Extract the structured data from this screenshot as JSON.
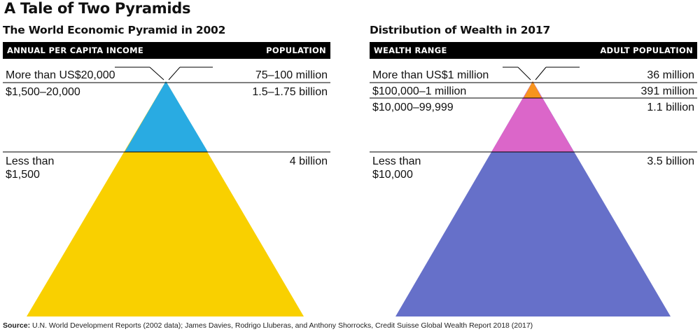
{
  "title": "A Tale of Two Pyramids",
  "panels": [
    {
      "title": "The World Economic Pyramid in 2002",
      "header_left": "ANNUAL PER CAPITA INCOME",
      "header_right": "POPULATION",
      "rows": [
        {
          "label": "More than US$20,000",
          "value": "75–100 million",
          "color": "#ffffff"
        },
        {
          "label": "$1,500–20,000",
          "value": "1.5–1.75 billion",
          "color": "#29abe2"
        },
        {
          "label": "Less than\n$1,500",
          "value": "4 billion",
          "color": "#f9d000"
        }
      ]
    },
    {
      "title": "Distribution of Wealth in 2017",
      "header_left": "WEALTH RANGE",
      "header_right": "ADULT POPULATION",
      "rows": [
        {
          "label": "More than US$1 million",
          "value": "36 million",
          "color": "#ffffff"
        },
        {
          "label": "$100,000–1 million",
          "value": "391 million",
          "color": "#f7941d"
        },
        {
          "label": "$10,000–99,999",
          "value": "1.1 billion",
          "color": "#db66c9"
        },
        {
          "label": "Less than\n$10,000",
          "value": "3.5 billion",
          "color": "#6670c9"
        }
      ]
    }
  ],
  "source_label": "Source:",
  "source_text": "U.N. World Development Reports (2002 data); James Davies, Rodrigo Lluberas, and Anthony Shorrocks, Credit Suisse Global Wealth Report 2018 (2017)"
}
